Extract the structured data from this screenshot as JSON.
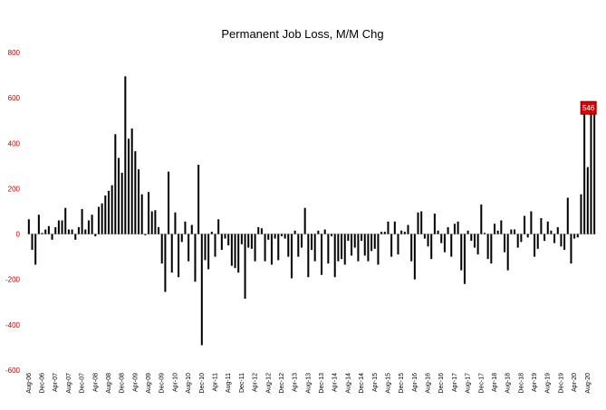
{
  "chart_data": {
    "type": "bar",
    "title": "Permanent Job Loss, M/M Chg",
    "xlabel": "",
    "ylabel": "",
    "ylim": [
      -600,
      800
    ],
    "yticks": [
      -600,
      -400,
      -200,
      0,
      200,
      400,
      600,
      800
    ],
    "grid": false,
    "legend": "none",
    "start_month": "Aug-06",
    "x_tick_labels": [
      "Aug-06",
      "Dec-06",
      "Apr-07",
      "Aug-07",
      "Dec-07",
      "Apr-08",
      "Aug-08",
      "Dec-08",
      "Apr-09",
      "Aug-09",
      "Dec-09",
      "Apr-10",
      "Aug-10",
      "Dec-10",
      "Apr-11",
      "Aug-11",
      "Dec-11",
      "Apr-12",
      "Aug-12",
      "Dec-12",
      "Apr-13",
      "Aug-13",
      "Dec-13",
      "Apr-14",
      "Aug-14",
      "Dec-14",
      "Apr-15",
      "Aug-15",
      "Dec-15",
      "Apr-16",
      "Aug-16",
      "Dec-16",
      "Apr-17",
      "Aug-17",
      "Dec-17",
      "Apr-18",
      "Aug-18",
      "Dec-18",
      "Apr-19",
      "Aug-19",
      "Dec-19",
      "Apr-20",
      "Aug-20"
    ],
    "values": [
      65,
      -70,
      -135,
      85,
      5,
      20,
      35,
      -25,
      30,
      60,
      60,
      115,
      20,
      20,
      -25,
      30,
      110,
      20,
      60,
      85,
      -10,
      120,
      135,
      170,
      190,
      215,
      440,
      335,
      270,
      695,
      420,
      465,
      365,
      285,
      175,
      -5,
      185,
      100,
      105,
      30,
      -130,
      -255,
      275,
      -170,
      95,
      -190,
      -35,
      55,
      -120,
      40,
      -210,
      305,
      -490,
      -115,
      -155,
      10,
      -100,
      65,
      -70,
      -20,
      -50,
      -140,
      -150,
      -170,
      -45,
      -285,
      -60,
      -65,
      -120,
      30,
      25,
      -120,
      -25,
      -135,
      -20,
      -115,
      -10,
      -20,
      -100,
      -195,
      15,
      -100,
      -60,
      115,
      -190,
      -70,
      -120,
      15,
      -180,
      20,
      -130,
      -10,
      -190,
      -120,
      -110,
      -135,
      -30,
      -95,
      -60,
      -120,
      -30,
      -95,
      -120,
      -75,
      -65,
      -135,
      10,
      10,
      55,
      -100,
      55,
      -90,
      15,
      10,
      40,
      -120,
      -200,
      95,
      100,
      -20,
      -55,
      -110,
      90,
      15,
      -40,
      -80,
      30,
      -100,
      45,
      55,
      -160,
      -220,
      15,
      -30,
      -60,
      -90,
      130,
      5,
      -110,
      -130,
      45,
      15,
      60,
      -80,
      -160,
      20,
      20,
      -60,
      -35,
      80,
      -15,
      100,
      -100,
      -65,
      70,
      -30,
      55,
      15,
      -40,
      30,
      -55,
      -70,
      160,
      -130,
      -20,
      -15,
      175,
      545,
      295,
      580,
      540
    ],
    "last_value_label": "546",
    "colors": {
      "bars": "#000000",
      "axis": "#bfbfbf",
      "ytick": "#c00000",
      "highlight": "#e00000",
      "highlight_border": "#800000"
    }
  }
}
